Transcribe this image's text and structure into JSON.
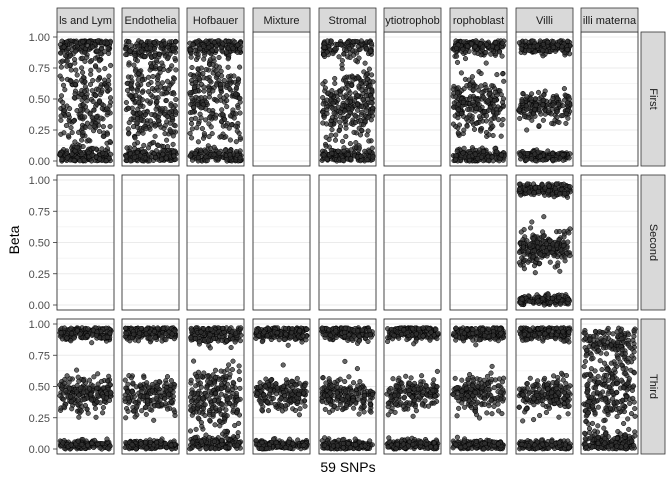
{
  "chart_data": {
    "type": "scatter",
    "title": "",
    "xlabel": "59 SNPs",
    "ylabel": "Beta",
    "ylim": [
      0,
      1
    ],
    "y_ticks": [
      "0.00",
      "0.25",
      "0.50",
      "0.75",
      "1.00"
    ],
    "grid": true,
    "legend": "none",
    "column_facets": [
      "ls and Lym",
      "Endothelia",
      "Hofbauer",
      "Mixture",
      "Stromal",
      "ytiotrophob",
      "rophoblast",
      "Villi",
      "illi materna"
    ],
    "row_facets": [
      "First",
      "Second",
      "Third"
    ],
    "panels": [
      {
        "row": "First",
        "col": "ls and Lym",
        "has_points": true,
        "clusters": [
          {
            "center": 0.93,
            "spread": 0.05,
            "weight": 0.25
          },
          {
            "center": 0.45,
            "spread": 0.22,
            "weight": 0.5
          },
          {
            "center": 0.04,
            "spread": 0.03,
            "weight": 0.25
          }
        ]
      },
      {
        "row": "First",
        "col": "Endothelia",
        "has_points": true,
        "clusters": [
          {
            "center": 0.9,
            "spread": 0.06,
            "weight": 0.25
          },
          {
            "center": 0.45,
            "spread": 0.22,
            "weight": 0.5
          },
          {
            "center": 0.04,
            "spread": 0.03,
            "weight": 0.25
          }
        ]
      },
      {
        "row": "First",
        "col": "Hofbauer",
        "has_points": true,
        "clusters": [
          {
            "center": 0.92,
            "spread": 0.04,
            "weight": 0.3
          },
          {
            "center": 0.5,
            "spread": 0.2,
            "weight": 0.45
          },
          {
            "center": 0.04,
            "spread": 0.03,
            "weight": 0.25
          }
        ]
      },
      {
        "row": "First",
        "col": "Mixture",
        "has_points": false,
        "clusters": []
      },
      {
        "row": "First",
        "col": "Stromal",
        "has_points": true,
        "clusters": [
          {
            "center": 0.92,
            "spread": 0.05,
            "weight": 0.25
          },
          {
            "center": 0.45,
            "spread": 0.15,
            "weight": 0.5
          },
          {
            "center": 0.04,
            "spread": 0.03,
            "weight": 0.25
          }
        ]
      },
      {
        "row": "First",
        "col": "ytiotrophob",
        "has_points": false,
        "clusters": []
      },
      {
        "row": "First",
        "col": "rophoblast",
        "has_points": true,
        "clusters": [
          {
            "center": 0.92,
            "spread": 0.04,
            "weight": 0.3
          },
          {
            "center": 0.45,
            "spread": 0.12,
            "weight": 0.45
          },
          {
            "center": 0.04,
            "spread": 0.03,
            "weight": 0.25
          }
        ]
      },
      {
        "row": "First",
        "col": "Villi",
        "has_points": true,
        "clusters": [
          {
            "center": 0.92,
            "spread": 0.03,
            "weight": 0.35
          },
          {
            "center": 0.44,
            "spread": 0.06,
            "weight": 0.35
          },
          {
            "center": 0.04,
            "spread": 0.02,
            "weight": 0.3
          }
        ]
      },
      {
        "row": "First",
        "col": "illi materna",
        "has_points": false,
        "clusters": []
      },
      {
        "row": "Second",
        "col": "ls and Lym",
        "has_points": false,
        "clusters": []
      },
      {
        "row": "Second",
        "col": "Endothelia",
        "has_points": false,
        "clusters": []
      },
      {
        "row": "Second",
        "col": "Hofbauer",
        "has_points": false,
        "clusters": []
      },
      {
        "row": "Second",
        "col": "Mixture",
        "has_points": false,
        "clusters": []
      },
      {
        "row": "Second",
        "col": "Stromal",
        "has_points": false,
        "clusters": []
      },
      {
        "row": "Second",
        "col": "ytiotrophob",
        "has_points": false,
        "clusters": []
      },
      {
        "row": "Second",
        "col": "rophoblast",
        "has_points": false,
        "clusters": []
      },
      {
        "row": "Second",
        "col": "Villi",
        "has_points": true,
        "clusters": [
          {
            "center": 0.92,
            "spread": 0.03,
            "weight": 0.35
          },
          {
            "center": 0.45,
            "spread": 0.07,
            "weight": 0.35
          },
          {
            "center": 0.04,
            "spread": 0.02,
            "weight": 0.3
          }
        ]
      },
      {
        "row": "Second",
        "col": "illi materna",
        "has_points": false,
        "clusters": []
      },
      {
        "row": "Third",
        "col": "ls and Lym",
        "has_points": true,
        "clusters": [
          {
            "center": 0.93,
            "spread": 0.03,
            "weight": 0.35
          },
          {
            "center": 0.44,
            "spread": 0.07,
            "weight": 0.35
          },
          {
            "center": 0.03,
            "spread": 0.02,
            "weight": 0.3
          }
        ]
      },
      {
        "row": "Third",
        "col": "Endothelia",
        "has_points": true,
        "clusters": [
          {
            "center": 0.93,
            "spread": 0.03,
            "weight": 0.35
          },
          {
            "center": 0.44,
            "spread": 0.07,
            "weight": 0.35
          },
          {
            "center": 0.03,
            "spread": 0.02,
            "weight": 0.3
          }
        ]
      },
      {
        "row": "Third",
        "col": "Hofbauer",
        "has_points": true,
        "clusters": [
          {
            "center": 0.92,
            "spread": 0.04,
            "weight": 0.3
          },
          {
            "center": 0.42,
            "spread": 0.12,
            "weight": 0.4
          },
          {
            "center": 0.04,
            "spread": 0.03,
            "weight": 0.3
          }
        ]
      },
      {
        "row": "Third",
        "col": "Mixture",
        "has_points": true,
        "clusters": [
          {
            "center": 0.93,
            "spread": 0.03,
            "weight": 0.35
          },
          {
            "center": 0.44,
            "spread": 0.07,
            "weight": 0.35
          },
          {
            "center": 0.03,
            "spread": 0.02,
            "weight": 0.3
          }
        ]
      },
      {
        "row": "Third",
        "col": "Stromal",
        "has_points": true,
        "clusters": [
          {
            "center": 0.93,
            "spread": 0.03,
            "weight": 0.35
          },
          {
            "center": 0.44,
            "spread": 0.07,
            "weight": 0.35
          },
          {
            "center": 0.03,
            "spread": 0.02,
            "weight": 0.3
          }
        ]
      },
      {
        "row": "Third",
        "col": "ytiotrophob",
        "has_points": true,
        "clusters": [
          {
            "center": 0.93,
            "spread": 0.03,
            "weight": 0.35
          },
          {
            "center": 0.44,
            "spread": 0.07,
            "weight": 0.35
          },
          {
            "center": 0.03,
            "spread": 0.02,
            "weight": 0.3
          }
        ]
      },
      {
        "row": "Third",
        "col": "rophoblast",
        "has_points": true,
        "clusters": [
          {
            "center": 0.93,
            "spread": 0.03,
            "weight": 0.35
          },
          {
            "center": 0.44,
            "spread": 0.07,
            "weight": 0.35
          },
          {
            "center": 0.03,
            "spread": 0.02,
            "weight": 0.3
          }
        ]
      },
      {
        "row": "Third",
        "col": "Villi",
        "has_points": true,
        "clusters": [
          {
            "center": 0.93,
            "spread": 0.03,
            "weight": 0.35
          },
          {
            "center": 0.44,
            "spread": 0.07,
            "weight": 0.35
          },
          {
            "center": 0.03,
            "spread": 0.02,
            "weight": 0.3
          }
        ]
      },
      {
        "row": "Third",
        "col": "illi materna",
        "has_points": true,
        "clusters": [
          {
            "center": 0.85,
            "spread": 0.06,
            "weight": 0.25
          },
          {
            "center": 0.45,
            "spread": 0.15,
            "weight": 0.45
          },
          {
            "center": 0.05,
            "spread": 0.04,
            "weight": 0.3
          }
        ]
      }
    ],
    "colors": {
      "point_fill": "#333333",
      "point_stroke": "#000000",
      "strip_fill": "#d9d9d9",
      "strip_border": "#333333",
      "panel_border": "#333333",
      "grid": "#ebebeb",
      "background": "#ffffff"
    }
  }
}
